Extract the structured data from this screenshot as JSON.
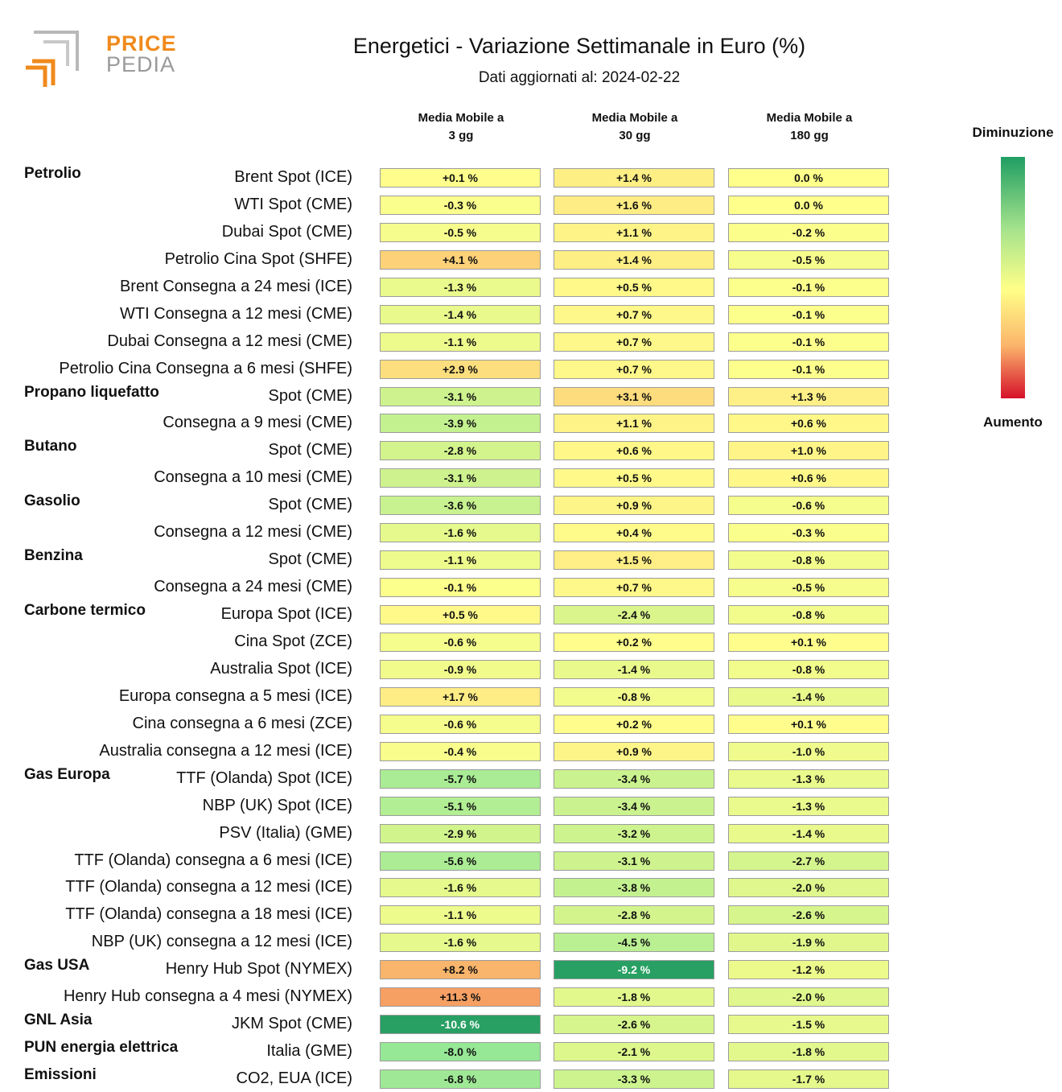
{
  "header": {
    "title": "Energetici - Variazione Settimanale in Euro (%)",
    "subtitle": "Dati aggiornati al: 2024-02-22",
    "logo": {
      "line1": "PRICE",
      "line2": "PEDIA",
      "color_primary": "#f08a1c",
      "color_secondary": "#9a9a9a"
    }
  },
  "legend": {
    "top_label": "Diminuzione",
    "bottom_label": "Aumento",
    "colors": [
      "#1f9e63",
      "#a6e38c",
      "#ffff88",
      "#fbb56b",
      "#d6112a"
    ]
  },
  "chart_data": {
    "type": "heatmap",
    "columns": [
      "Media Mobile a\n3 gg",
      "Media Mobile a\n30 gg",
      "Media Mobile a\n180 gg"
    ],
    "value_suffix": " %",
    "rows": [
      {
        "group": "Petrolio",
        "label": "Brent Spot (ICE)",
        "values": [
          0.1,
          1.4,
          0.0
        ],
        "display": [
          "+0.1 %",
          "+1.4 %",
          "0.0 %"
        ]
      },
      {
        "group": "",
        "label": "WTI Spot (CME)",
        "values": [
          -0.3,
          1.6,
          0.0
        ],
        "display": [
          "-0.3 %",
          "+1.6 %",
          "0.0 %"
        ]
      },
      {
        "group": "",
        "label": "Dubai Spot (CME)",
        "values": [
          -0.5,
          1.1,
          -0.2
        ],
        "display": [
          "-0.5 %",
          "+1.1 %",
          "-0.2 %"
        ]
      },
      {
        "group": "",
        "label": "Petrolio Cina Spot (SHFE)",
        "values": [
          4.1,
          1.4,
          -0.5
        ],
        "display": [
          "+4.1 %",
          "+1.4 %",
          "-0.5 %"
        ]
      },
      {
        "group": "",
        "label": "Brent Consegna a 24 mesi (ICE)",
        "values": [
          -1.3,
          0.5,
          -0.1
        ],
        "display": [
          "-1.3 %",
          "+0.5 %",
          "-0.1 %"
        ]
      },
      {
        "group": "",
        "label": "WTI Consegna a 12 mesi (CME)",
        "values": [
          -1.4,
          0.7,
          -0.1
        ],
        "display": [
          "-1.4 %",
          "+0.7 %",
          "-0.1 %"
        ]
      },
      {
        "group": "",
        "label": "Dubai Consegna a 12 mesi (CME)",
        "values": [
          -1.1,
          0.7,
          -0.1
        ],
        "display": [
          "-1.1 %",
          "+0.7 %",
          "-0.1 %"
        ]
      },
      {
        "group": "",
        "label": "Petrolio Cina Consegna a 6 mesi (SHFE)",
        "values": [
          2.9,
          0.7,
          -0.1
        ],
        "display": [
          "+2.9 %",
          "+0.7 %",
          "-0.1 %"
        ]
      },
      {
        "group": "Propano liquefatto",
        "label": "Spot (CME)",
        "values": [
          -3.1,
          3.1,
          1.3
        ],
        "display": [
          "-3.1 %",
          "+3.1 %",
          "+1.3 %"
        ]
      },
      {
        "group": "",
        "label": "Consegna a 9 mesi (CME)",
        "values": [
          -3.9,
          1.1,
          0.6
        ],
        "display": [
          "-3.9 %",
          "+1.1 %",
          "+0.6 %"
        ]
      },
      {
        "group": "Butano",
        "label": "Spot (CME)",
        "values": [
          -2.8,
          0.6,
          1.0
        ],
        "display": [
          "-2.8 %",
          "+0.6 %",
          "+1.0 %"
        ]
      },
      {
        "group": "",
        "label": "Consegna a 10 mesi (CME)",
        "values": [
          -3.1,
          0.5,
          0.6
        ],
        "display": [
          "-3.1 %",
          "+0.5 %",
          "+0.6 %"
        ]
      },
      {
        "group": "Gasolio",
        "label": "Spot (CME)",
        "values": [
          -3.6,
          0.9,
          -0.6
        ],
        "display": [
          "-3.6 %",
          "+0.9 %",
          "-0.6 %"
        ]
      },
      {
        "group": "",
        "label": "Consegna a 12 mesi (CME)",
        "values": [
          -1.6,
          0.4,
          -0.3
        ],
        "display": [
          "-1.6 %",
          "+0.4 %",
          "-0.3 %"
        ]
      },
      {
        "group": "Benzina",
        "label": "Spot (CME)",
        "values": [
          -1.1,
          1.5,
          -0.8
        ],
        "display": [
          "-1.1 %",
          "+1.5 %",
          "-0.8 %"
        ]
      },
      {
        "group": "",
        "label": "Consegna a 24 mesi (CME)",
        "values": [
          -0.1,
          0.7,
          -0.5
        ],
        "display": [
          "-0.1 %",
          "+0.7 %",
          "-0.5 %"
        ]
      },
      {
        "group": "Carbone termico",
        "label": "Europa Spot (ICE)",
        "values": [
          0.5,
          -2.4,
          -0.8
        ],
        "display": [
          "+0.5 %",
          "-2.4 %",
          "-0.8 %"
        ]
      },
      {
        "group": "",
        "label": "Cina Spot (ZCE)",
        "values": [
          -0.6,
          0.2,
          0.1
        ],
        "display": [
          "-0.6 %",
          "+0.2 %",
          "+0.1 %"
        ]
      },
      {
        "group": "",
        "label": "Australia Spot (ICE)",
        "values": [
          -0.9,
          -1.4,
          -0.8
        ],
        "display": [
          "-0.9 %",
          "-1.4 %",
          "-0.8 %"
        ]
      },
      {
        "group": "",
        "label": "Europa consegna a 5 mesi (ICE)",
        "values": [
          1.7,
          -0.8,
          -1.4
        ],
        "display": [
          "+1.7 %",
          "-0.8 %",
          "-1.4 %"
        ]
      },
      {
        "group": "",
        "label": "Cina consegna a 6 mesi (ZCE)",
        "values": [
          -0.6,
          0.2,
          0.1
        ],
        "display": [
          "-0.6 %",
          "+0.2 %",
          "+0.1 %"
        ]
      },
      {
        "group": "",
        "label": "Australia consegna a 12 mesi (ICE)",
        "values": [
          -0.4,
          0.9,
          -1.0
        ],
        "display": [
          "-0.4 %",
          "+0.9 %",
          "-1.0 %"
        ]
      },
      {
        "group": "Gas Europa",
        "label": "TTF (Olanda) Spot (ICE)",
        "values": [
          -5.7,
          -3.4,
          -1.3
        ],
        "display": [
          "-5.7 %",
          "-3.4 %",
          "-1.3 %"
        ]
      },
      {
        "group": "",
        "label": "NBP (UK) Spot (ICE)",
        "values": [
          -5.1,
          -3.4,
          -1.3
        ],
        "display": [
          "-5.1 %",
          "-3.4 %",
          "-1.3 %"
        ]
      },
      {
        "group": "",
        "label": "PSV (Italia) (GME)",
        "values": [
          -2.9,
          -3.2,
          -1.4
        ],
        "display": [
          "-2.9 %",
          "-3.2 %",
          "-1.4 %"
        ]
      },
      {
        "group": "",
        "label": "TTF (Olanda) consegna a 6 mesi (ICE)",
        "values": [
          -5.6,
          -3.1,
          -2.7
        ],
        "display": [
          "-5.6 %",
          "-3.1 %",
          "-2.7 %"
        ]
      },
      {
        "group": "",
        "label": "TTF (Olanda) consegna a 12 mesi (ICE)",
        "values": [
          -1.6,
          -3.8,
          -2.0
        ],
        "display": [
          "-1.6 %",
          "-3.8 %",
          "-2.0 %"
        ]
      },
      {
        "group": "",
        "label": "TTF (Olanda) consegna a 18 mesi (ICE)",
        "values": [
          -1.1,
          -2.8,
          -2.6
        ],
        "display": [
          "-1.1 %",
          "-2.8 %",
          "-2.6 %"
        ]
      },
      {
        "group": "",
        "label": "NBP (UK) consegna a 12 mesi (ICE)",
        "values": [
          -1.6,
          -4.5,
          -1.9
        ],
        "display": [
          "-1.6 %",
          "-4.5 %",
          "-1.9 %"
        ]
      },
      {
        "group": "Gas USA",
        "label": "Henry Hub Spot (NYMEX)",
        "values": [
          8.2,
          -9.2,
          -1.2
        ],
        "display": [
          "+8.2 %",
          "-9.2 %",
          "-1.2 %"
        ]
      },
      {
        "group": "",
        "label": "Henry Hub consegna a 4 mesi (NYMEX)",
        "values": [
          11.3,
          -1.8,
          -2.0
        ],
        "display": [
          "+11.3 %",
          "-1.8 %",
          "-2.0 %"
        ]
      },
      {
        "group": "GNL Asia",
        "label": "JKM Spot (CME)",
        "values": [
          -10.6,
          -2.6,
          -1.5
        ],
        "display": [
          "-10.6 %",
          "-2.6 %",
          "-1.5 %"
        ]
      },
      {
        "group": "PUN energia elettrica",
        "label": "Italia (GME)",
        "values": [
          -8.0,
          -2.1,
          -1.8
        ],
        "display": [
          "-8.0 %",
          "-2.1 %",
          "-1.8 %"
        ]
      },
      {
        "group": "Emissioni",
        "label": "CO2, EUA (ICE)",
        "values": [
          -6.8,
          -3.3,
          -1.7
        ],
        "display": [
          "-6.8 %",
          "-3.3 %",
          "-1.7 %"
        ]
      }
    ]
  }
}
